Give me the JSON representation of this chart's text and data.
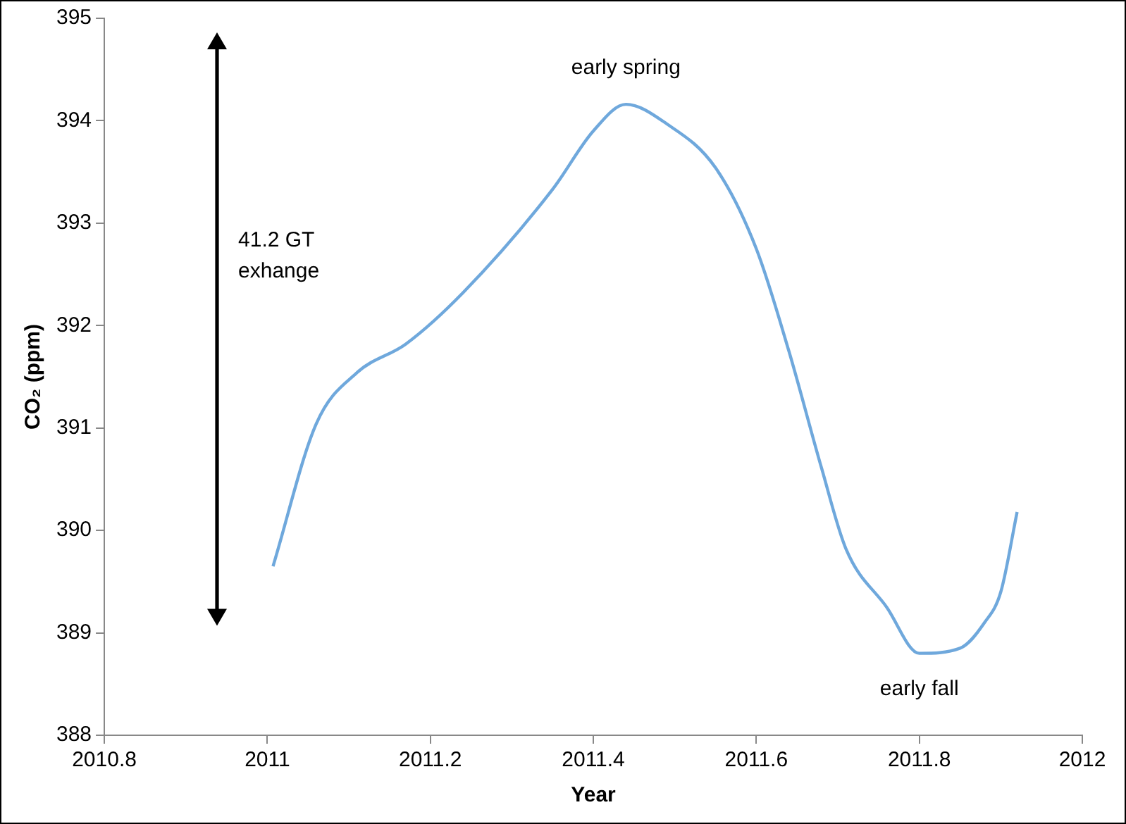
{
  "chart_data": {
    "type": "line",
    "xlabel": "Year",
    "ylabel": "CO₂ (ppm)",
    "x": [
      2011.007,
      2011.06,
      2011.11,
      2011.17,
      2011.24,
      2011.35,
      2011.4,
      2011.44,
      2011.49,
      2011.55,
      2011.6,
      2011.64,
      2011.68,
      2011.71,
      2011.76,
      2011.8,
      2011.85,
      2011.88,
      2011.9,
      2011.92
    ],
    "series": [
      {
        "color": "#6fa8dc",
        "values": [
          389.65,
          391.04,
          391.54,
          391.82,
          392.32,
          393.33,
          393.9,
          394.16,
          393.97,
          393.54,
          392.75,
          391.75,
          390.61,
          389.82,
          389.25,
          388.8,
          388.85,
          389.1,
          389.4,
          390.18
        ]
      }
    ],
    "xlim": [
      2010.8,
      2012
    ],
    "xticks": [
      2010.8,
      2011,
      2011.2,
      2011.4,
      2011.6,
      2011.8,
      2012
    ],
    "ylim": [
      388,
      395
    ],
    "yticks": [
      388,
      389,
      390,
      391,
      392,
      393,
      394,
      395
    ],
    "grid": false,
    "legend": false,
    "marker": "none",
    "line_style": "solid",
    "annotations": [
      {
        "text": "early spring",
        "x": 2011.44,
        "y": 394.16
      },
      {
        "text": "early fall",
        "x": 2011.8,
        "y": 388.8
      },
      "41.2 GT exhange"
    ]
  }
}
